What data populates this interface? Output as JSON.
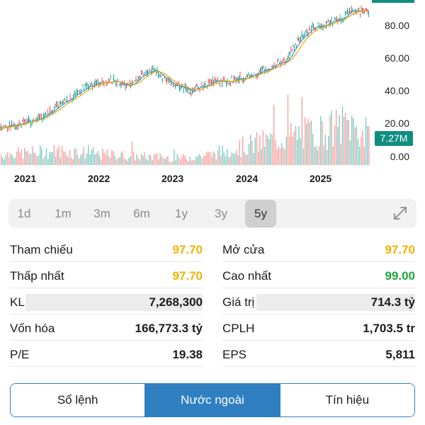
{
  "chart_data": {
    "type": "line",
    "price_series": {
      "x": [
        "2020-09",
        "2020-12",
        "2021-03",
        "2021-06",
        "2021-09",
        "2021-12",
        "2022-03",
        "2022-05",
        "2022-07",
        "2022-09",
        "2022-11",
        "2023-01",
        "2023-03",
        "2023-06",
        "2023-09",
        "2023-12",
        "2024-03",
        "2024-06",
        "2024-08",
        "2024-10",
        "2025-03",
        "2025-04"
      ],
      "y": [
        20.5,
        22.5,
        26.5,
        35.0,
        44.5,
        51.0,
        52.0,
        48.5,
        55.0,
        60.5,
        52.0,
        48.0,
        45.0,
        51.0,
        52.0,
        55.0,
        60.0,
        67.0,
        80.0,
        88.0,
        95.0,
        100.0
      ]
    },
    "volume_series": {
      "note_unit": "M",
      "x": [
        "2020-09",
        "2021-01",
        "2021-06",
        "2022-01",
        "2022-06",
        "2023-01",
        "2023-06",
        "2024-01",
        "2024-06",
        "2025-01",
        "2025-04",
        "2025-07"
      ],
      "y": [
        3.0,
        3.5,
        4.0,
        3.0,
        2.5,
        2.0,
        3.0,
        6.0,
        8.0,
        10.0,
        12.0,
        7.27
      ]
    },
    "y_ticks": [
      "80.00",
      "60.00",
      "40.00",
      "20.00",
      "0.00"
    ],
    "y_range": [
      0,
      110
    ],
    "x_ticks": [
      "2021",
      "2022",
      "2023",
      "2024",
      "2025"
    ],
    "last_volume_label": "7.27M",
    "colors": {
      "up": "#14a094",
      "down": "#ef5350",
      "line1": "#f0a500",
      "line2": "#2f9bd8"
    }
  },
  "periods": [
    "1d",
    "1m",
    "3m",
    "6m",
    "1y",
    "3y",
    "5y"
  ],
  "active_period": "5y",
  "stats": {
    "left": [
      {
        "label": "Tham chiếu",
        "value": "97.70",
        "color": "#f0b400"
      },
      {
        "label": "Thấp nhất",
        "value": "97.70",
        "color": "#f0b400"
      },
      {
        "label": "KL",
        "value": "7,268,300",
        "color": "#1b1b1b"
      },
      {
        "label": "Vốn hóa",
        "value": "166,773.3 tỷ",
        "color": "#1b1b1b"
      },
      {
        "label": "P/E",
        "value": "19.38",
        "color": "#1b1b1b"
      }
    ],
    "right": [
      {
        "label": "Mở cửa",
        "value": "97.70",
        "color": "#f0b400"
      },
      {
        "label": "Cao nhất",
        "value": "99.00",
        "color": "#1fa83a"
      },
      {
        "label": "Giá trị",
        "value": "714.3 tỷ",
        "color": "#1b1b1b"
      },
      {
        "label": "CPLH",
        "value": "1,703.5 tr",
        "color": "#1b1b1b"
      },
      {
        "label": "EPS",
        "value": "5,811",
        "color": "#1b1b1b"
      }
    ]
  },
  "tabs": [
    "Sổ lệnh",
    "Nước ngoài",
    "Tín hiệu"
  ],
  "active_tab": "Nước ngoài",
  "icons": {
    "expand": "expand-icon"
  }
}
